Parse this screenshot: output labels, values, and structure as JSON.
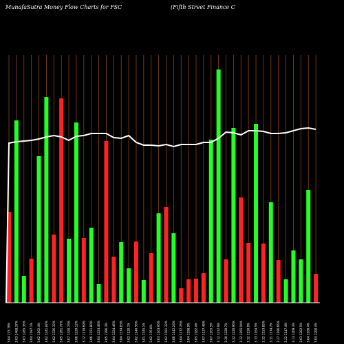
{
  "chart_data": {
    "type": "bar",
    "title": "MunafaSutra  Money Flow  Charts for FSC",
    "subtitle": "(Fifth Street Finance   C",
    "colors": {
      "background": "#000000",
      "up": "#22ff22",
      "down": "#ff2222",
      "gridline": "#8b4513",
      "line": "#ffffff",
      "axis": "#ffffff",
      "text": "#ffffff"
    },
    "categories": [
      "3.04 173.79%",
      "3.03 1468.37%",
      "3.03 1285.36%",
      "3.04 1187.1%",
      "3.02 1162.4%",
      "3.02 1241.87%",
      "3.02 1326.32%",
      "3.05 1281.77%",
      "3.07 1320.74%",
      "3.06 1229.12%",
      "3.12 1178.69%",
      "3.06 1151.80%",
      "3.04 1223.46%",
      "3.05 1796.3%",
      "3.04 1224.46%",
      "3.04 1174.83%",
      "3.02 1120.1%",
      "3.02 1140.56%",
      "3.01 1745.1%",
      "3.02 176.8%",
      "3.03 1163.95%",
      "3.02 1181.32%",
      "3.06 1142.24%",
      "3.04 1172.76%",
      "3.04 1198.9%",
      "3.05 1182.4%",
      "3.07 1127.48%",
      "3.07 1165.5%",
      "3.12 1212.9%",
      "3.20 1220.7%",
      "3.32 1220.96%",
      "3.32 1165.94%",
      "3.32 1150.9%",
      "3.33 1164.5%",
      "3.32 1153.85%",
      "3.31 1174.7%",
      "3.27 1196.66%",
      "3.22 1147.4%",
      "3.13 1209.3%",
      "3.03 1202.5%",
      "3.04 1160.4%",
      "3.04 1200.4%"
    ],
    "series": [
      {
        "values": [
          132,
          265,
          39,
          64,
          213,
          299,
          99,
          297,
          93,
          262,
          94,
          109,
          27,
          235,
          67,
          88,
          50,
          89,
          33,
          72,
          130,
          139,
          101,
          21,
          34,
          35,
          43,
          237,
          339,
          63,
          254,
          153,
          87,
          260,
          86,
          146,
          62,
          34,
          76,
          63,
          164,
          42
        ],
        "directions": [
          "down",
          "up",
          "up",
          "down",
          "up",
          "up",
          "down",
          "down",
          "up",
          "up",
          "down",
          "up",
          "up",
          "down",
          "down",
          "up",
          "up",
          "down",
          "up",
          "down",
          "up",
          "down",
          "up",
          "down",
          "down",
          "down",
          "down",
          "up",
          "up",
          "down",
          "up",
          "down",
          "down",
          "up",
          "down",
          "up",
          "down",
          "up",
          "up",
          "up",
          "up",
          "down"
        ]
      },
      {
        "values": [
          232,
          234,
          235,
          236,
          238,
          241,
          243,
          241,
          236,
          242,
          243,
          246,
          246,
          246,
          240,
          239,
          243,
          233,
          229,
          229,
          228,
          230,
          227,
          230,
          230,
          230,
          233,
          233,
          239,
          248,
          247,
          244,
          250,
          250,
          249,
          246,
          246,
          247,
          250,
          253,
          254,
          252
        ]
      }
    ],
    "ylim": [
      0,
      400
    ],
    "grid": true,
    "legend": "none"
  }
}
